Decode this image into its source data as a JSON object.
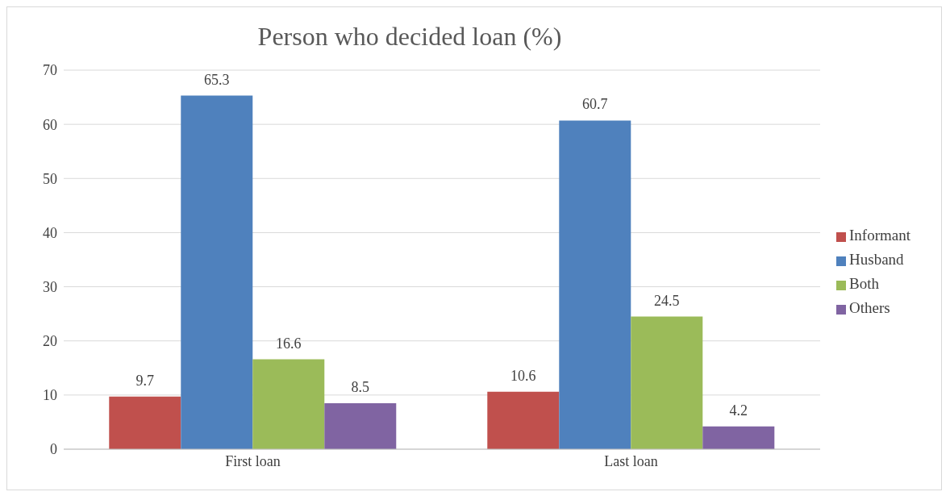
{
  "chart_data": {
    "type": "bar",
    "title": "Person who decided loan (%)",
    "categories": [
      "First loan",
      "Last loan"
    ],
    "series": [
      {
        "name": "Informant",
        "color": "#c0504d",
        "values": [
          9.7,
          10.6
        ]
      },
      {
        "name": "Husband",
        "color": "#4f81bd",
        "values": [
          65.3,
          60.7
        ]
      },
      {
        "name": "Both",
        "color": "#9bbb59",
        "values": [
          16.6,
          24.5
        ]
      },
      {
        "name": "Others",
        "color": "#8064a2",
        "values": [
          8.5,
          4.2
        ]
      }
    ],
    "ylim": [
      0,
      70
    ],
    "yticks": [
      0,
      10,
      20,
      30,
      40,
      50,
      60,
      70
    ],
    "grid": "y",
    "legend": "right",
    "data_labels": true
  }
}
